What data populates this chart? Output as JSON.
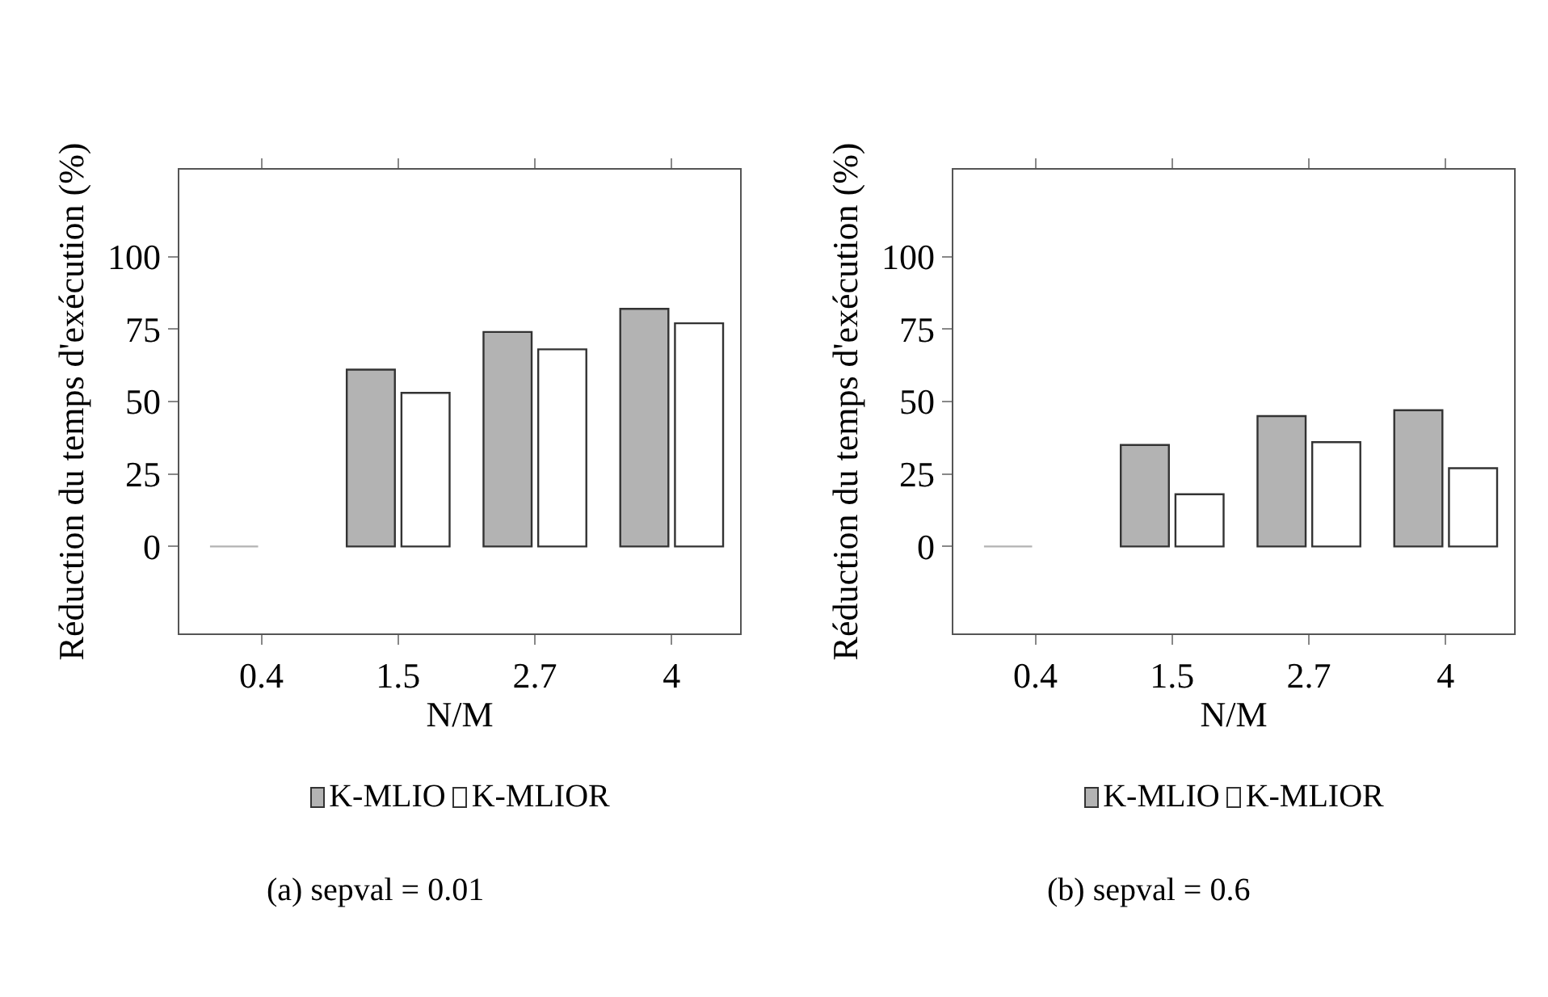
{
  "chart_data": [
    {
      "type": "bar",
      "xlabel": "N/M",
      "ylabel": "Réduction du temps d'exécution (%)",
      "categories": [
        "0.4",
        "1.5",
        "2.7",
        "4"
      ],
      "series": [
        {
          "name": "K-MLIO",
          "color": "#b3b3b3",
          "values": [
            0,
            61,
            74,
            82
          ]
        },
        {
          "name": "K-MLIOR",
          "color": "#ffffff",
          "values": [
            0,
            53,
            68,
            77
          ]
        }
      ],
      "ylim": [
        -30,
        130
      ],
      "yticks": [
        0,
        25,
        50,
        75,
        100
      ],
      "grid": false,
      "legend": "bottom",
      "annotations": [
        "(a) sepval = 0.01"
      ]
    },
    {
      "type": "bar",
      "xlabel": "N/M",
      "ylabel": "Réduction du temps d'exécution (%)",
      "categories": [
        "0.4",
        "1.5",
        "2.7",
        "4"
      ],
      "series": [
        {
          "name": "K-MLIO",
          "color": "#b3b3b3",
          "values": [
            0,
            35,
            45,
            47
          ]
        },
        {
          "name": "K-MLIOR",
          "color": "#ffffff",
          "values": [
            0,
            18,
            36,
            27
          ]
        }
      ],
      "ylim": [
        -30,
        130
      ],
      "yticks": [
        0,
        25,
        50,
        75,
        100
      ],
      "grid": false,
      "legend": "bottom",
      "annotations": [
        "(b) sepval = 0.6"
      ]
    }
  ]
}
